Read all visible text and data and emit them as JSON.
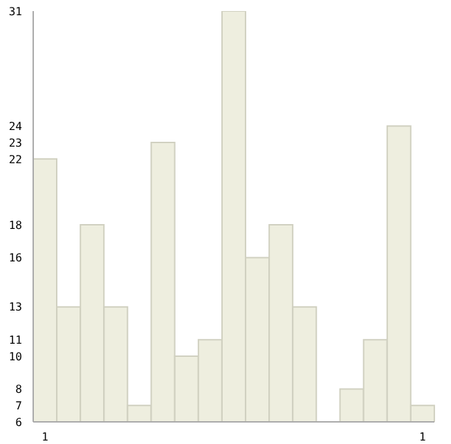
{
  "chart_data": {
    "type": "bar",
    "categories": [
      "1",
      null,
      null,
      null,
      null,
      null,
      null,
      null,
      null,
      null,
      null,
      null,
      null,
      null,
      null,
      null,
      "1"
    ],
    "values": [
      22,
      13,
      18,
      13,
      7,
      23,
      10,
      11,
      31,
      16,
      18,
      13,
      6,
      8,
      11,
      24,
      7
    ],
    "color": "#eeeedf",
    "ylim": [
      6,
      31
    ],
    "yticks": [
      6,
      7,
      8,
      10,
      11,
      13,
      16,
      18,
      22,
      23,
      24,
      31
    ],
    "grid": false
  }
}
